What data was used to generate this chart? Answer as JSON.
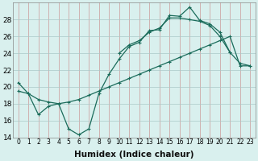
{
  "xlabel": "Humidex (Indice chaleur)",
  "background_color": "#d9f0ee",
  "grid_color_v": "#d4a0a0",
  "grid_color_h": "#c8d8d8",
  "line_color": "#1a6b5a",
  "ylim": [
    14,
    30
  ],
  "yticks": [
    14,
    16,
    18,
    20,
    22,
    24,
    26,
    28
  ],
  "xtick_fontsize": 5.5,
  "ytick_fontsize": 6.5,
  "xlabel_fontsize": 7.5,
  "line1_x": [
    0,
    1,
    2,
    3,
    4,
    5,
    6,
    7,
    8,
    9,
    10,
    11,
    12,
    13,
    14,
    15,
    16,
    17,
    18,
    19,
    20,
    21
  ],
  "line1_y": [
    20.5,
    19.2,
    16.7,
    17.7,
    18.0,
    15.0,
    14.3,
    15.0,
    19.2,
    21.5,
    23.3,
    24.8,
    25.3,
    26.7,
    26.8,
    28.5,
    28.4,
    29.5,
    27.9,
    27.5,
    26.5,
    24.1
  ],
  "line2_x": [
    0,
    1,
    2,
    3,
    4,
    5,
    6,
    7,
    8,
    9,
    10,
    11,
    12,
    13,
    14,
    15,
    16,
    17,
    18,
    19,
    20,
    21,
    22,
    23
  ],
  "line2_y": [
    19.5,
    19.2,
    18.5,
    18.2,
    18.0,
    18.2,
    18.5,
    19.0,
    19.5,
    20.0,
    20.5,
    21.0,
    21.5,
    22.0,
    22.5,
    23.0,
    23.5,
    24.0,
    24.5,
    25.0,
    25.5,
    26.0,
    22.5,
    22.5
  ],
  "line3_x": [
    10,
    11,
    12,
    13,
    14,
    15,
    16,
    17,
    18,
    19,
    20,
    21,
    22,
    23
  ],
  "line3_y": [
    24.0,
    25.0,
    25.5,
    26.5,
    27.0,
    28.2,
    28.2,
    28.0,
    27.8,
    27.3,
    26.0,
    24.1,
    22.8,
    22.5
  ]
}
